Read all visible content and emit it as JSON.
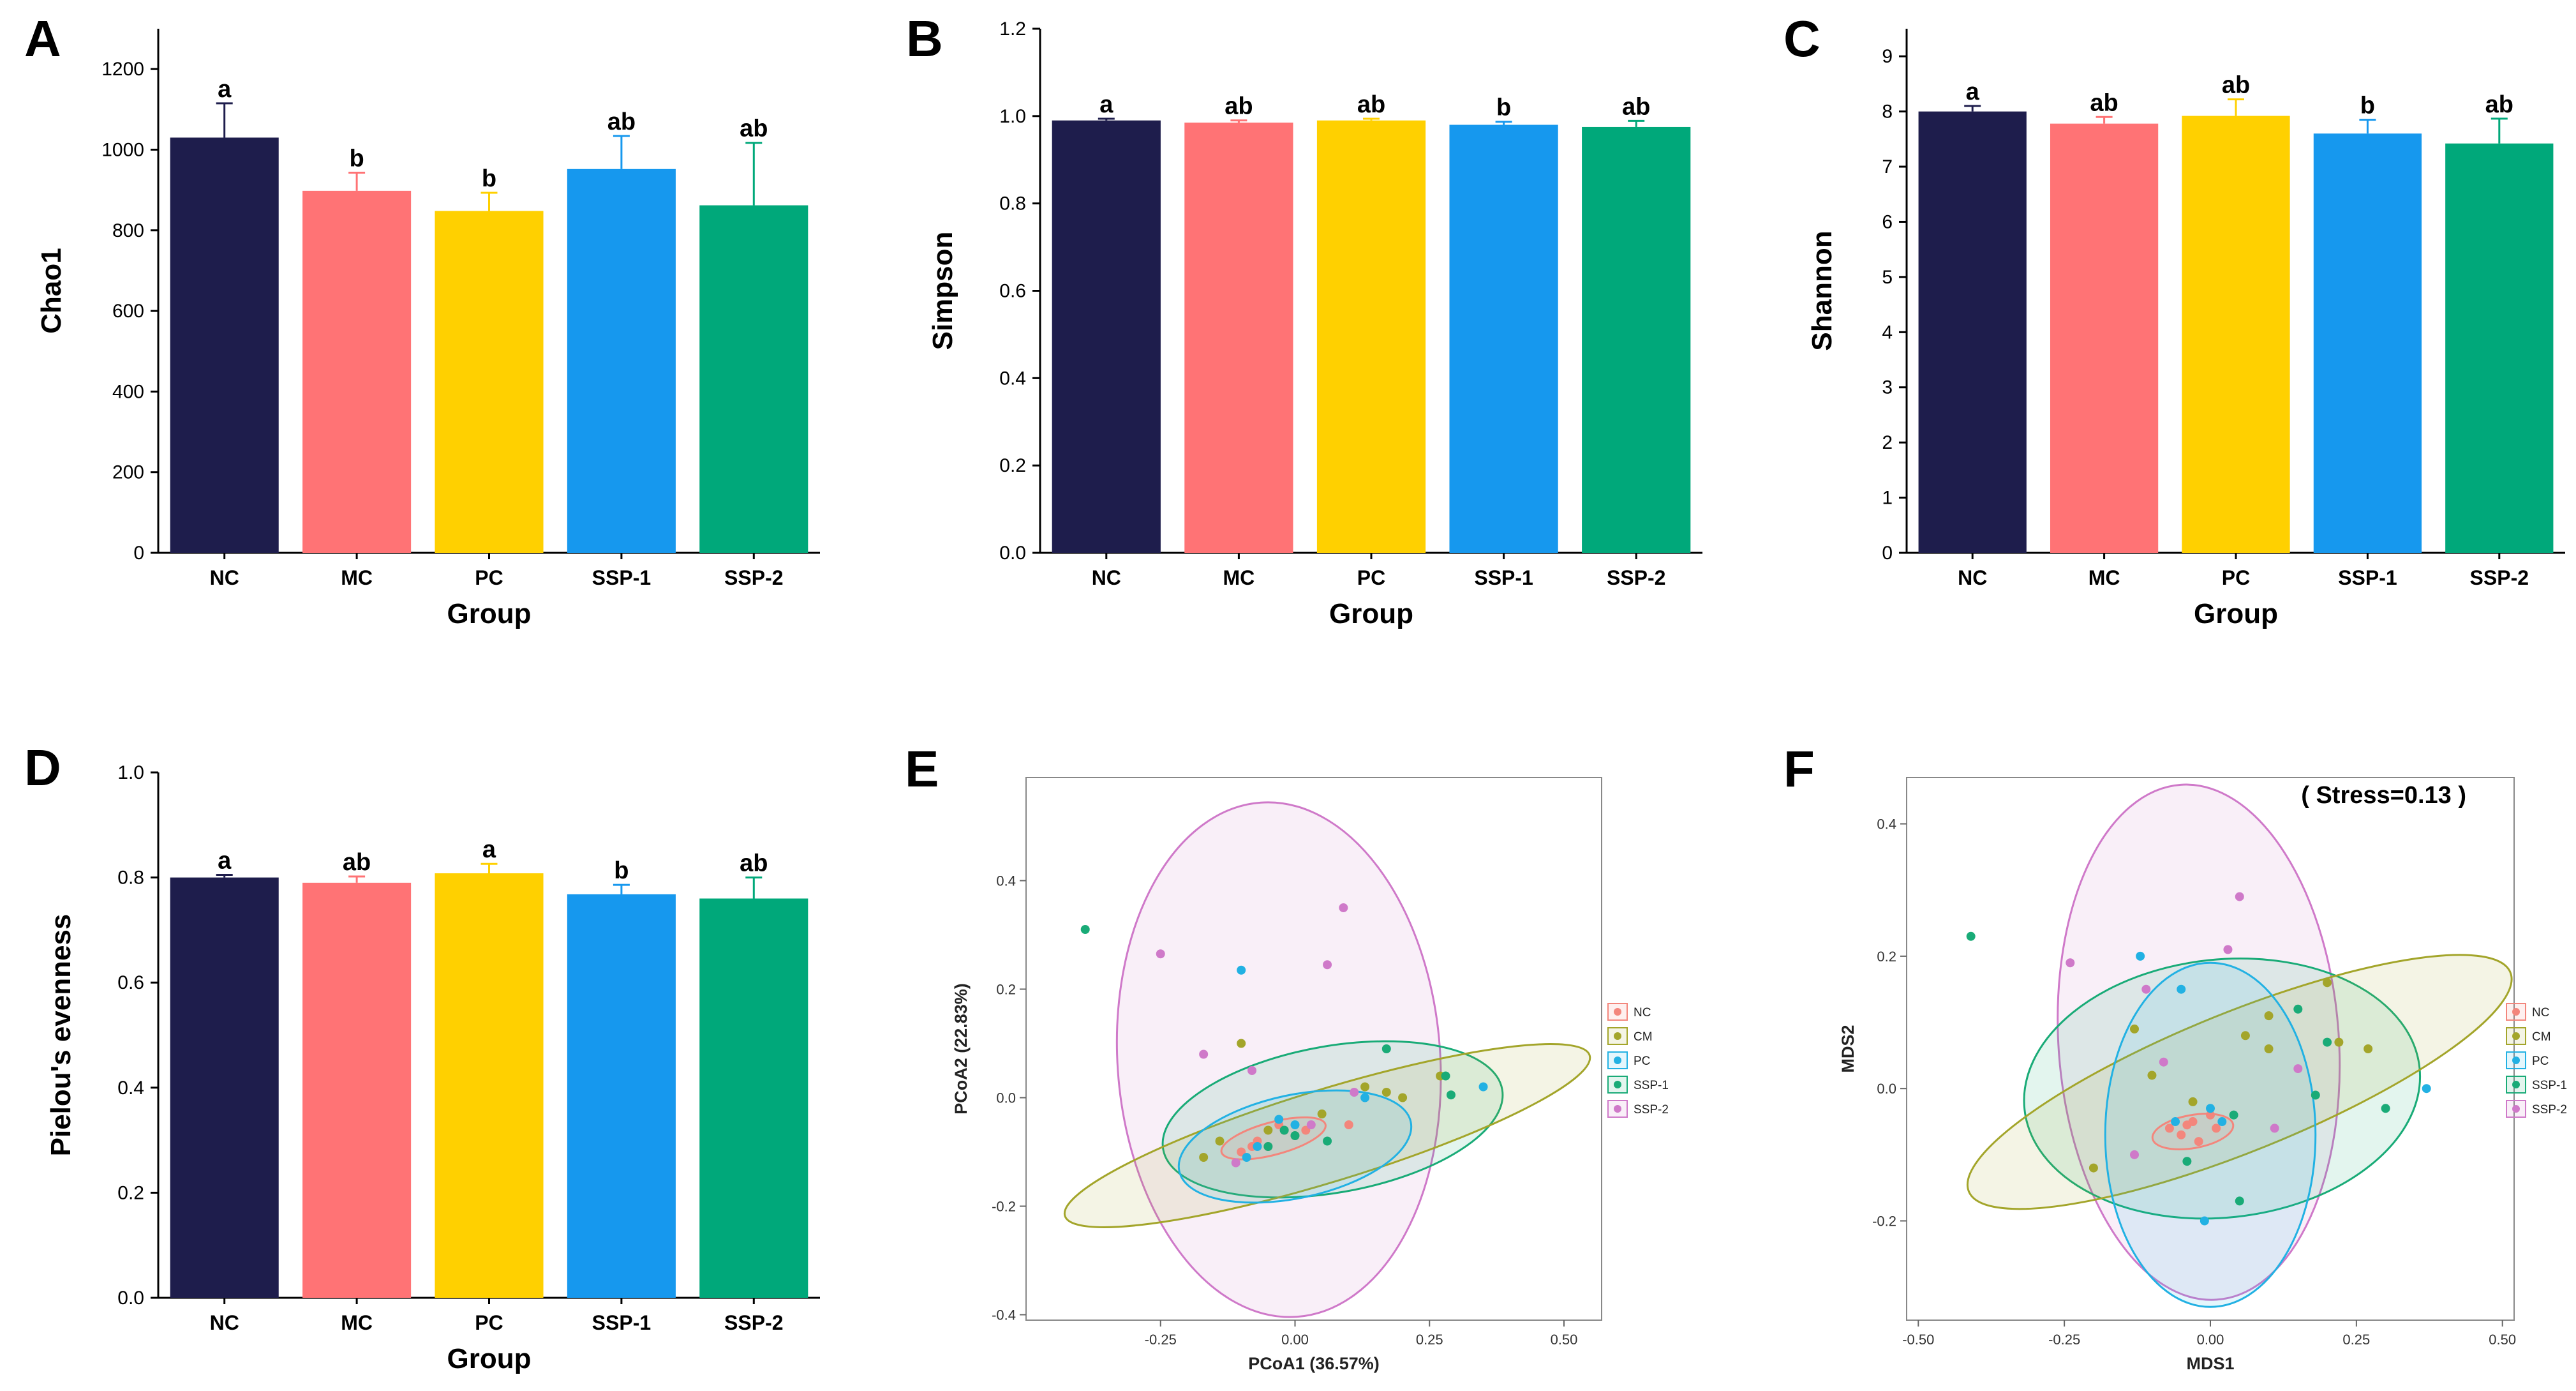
{
  "colors": {
    "NC": "#1e1d4c",
    "MC": "#ff7375",
    "PC": "#ffd000",
    "SSP-1": "#1698ee",
    "SSP-2": "#00a87a"
  },
  "scatter_colors": {
    "NC": "#f3867c",
    "CM": "#a3a52a",
    "PC": "#22b1e3",
    "SSP-1": "#19ab77",
    "SSP-2": "#cf79c9"
  },
  "chart_data": [
    {
      "letter": "A",
      "type": "bar",
      "title": "",
      "xlabel": "Group",
      "ylabel": "Chao1",
      "categories": [
        "NC",
        "MC",
        "PC",
        "SSP-1",
        "SSP-2"
      ],
      "values": [
        1030,
        898,
        848,
        952,
        862
      ],
      "errors": [
        85,
        45,
        45,
        82,
        155
      ],
      "significance": [
        "a",
        "b",
        "b",
        "ab",
        "ab"
      ],
      "ylim": [
        0,
        1300
      ],
      "yticks": [
        0,
        200,
        400,
        600,
        800,
        1000,
        1200
      ],
      "ytick_labels": [
        "0",
        "200",
        "400",
        "600",
        "800",
        "1000",
        "1200"
      ]
    },
    {
      "letter": "B",
      "type": "bar",
      "title": "",
      "xlabel": "Group",
      "ylabel": "Simpson",
      "categories": [
        "NC",
        "MC",
        "PC",
        "SSP-1",
        "SSP-2"
      ],
      "values": [
        0.99,
        0.985,
        0.99,
        0.98,
        0.975
      ],
      "errors": [
        0.004,
        0.005,
        0.004,
        0.007,
        0.014
      ],
      "significance": [
        "a",
        "ab",
        "ab",
        "b",
        "ab"
      ],
      "ylim": [
        0,
        1.2
      ],
      "yticks": [
        0,
        0.2,
        0.4,
        0.6,
        0.8,
        1.0,
        1.2
      ],
      "ytick_labels": [
        "0.0",
        "0.2",
        "0.4",
        "0.6",
        "0.8",
        "1.0",
        "1.2"
      ]
    },
    {
      "letter": "C",
      "type": "bar",
      "title": "",
      "xlabel": "Group",
      "ylabel": "Shannon",
      "categories": [
        "NC",
        "MC",
        "PC",
        "SSP-1",
        "SSP-2"
      ],
      "values": [
        8.0,
        7.78,
        7.92,
        7.6,
        7.42
      ],
      "errors": [
        0.1,
        0.12,
        0.3,
        0.25,
        0.45
      ],
      "significance": [
        "a",
        "ab",
        "ab",
        "b",
        "ab"
      ],
      "ylim": [
        0,
        9.5
      ],
      "yticks": [
        0,
        1,
        2,
        3,
        4,
        5,
        6,
        7,
        8,
        9
      ],
      "ytick_labels": [
        "0",
        "1",
        "2",
        "3",
        "4",
        "5",
        "6",
        "7",
        "8",
        "9"
      ]
    },
    {
      "letter": "D",
      "type": "bar",
      "title": "",
      "xlabel": "Group",
      "ylabel": "Pielou's evenness",
      "categories": [
        "NC",
        "MC",
        "PC",
        "SSP-1",
        "SSP-2"
      ],
      "values": [
        0.8,
        0.79,
        0.808,
        0.768,
        0.76
      ],
      "errors": [
        0.005,
        0.012,
        0.018,
        0.018,
        0.04
      ],
      "significance": [
        "a",
        "ab",
        "a",
        "b",
        "ab"
      ],
      "ylim": [
        0,
        1.0
      ],
      "yticks": [
        0,
        0.2,
        0.4,
        0.6,
        0.8,
        1.0
      ],
      "ytick_labels": [
        "0.0",
        "0.2",
        "0.4",
        "0.6",
        "0.8",
        "1.0"
      ]
    },
    {
      "letter": "E",
      "type": "scatter",
      "title": "",
      "xlabel": "PCoA1 (36.57%)",
      "ylabel": "PCoA2 (22.83%)",
      "xlim": [
        -0.5,
        0.57
      ],
      "ylim": [
        -0.41,
        0.59
      ],
      "xticks": [
        -0.25,
        0,
        0.25,
        0.5
      ],
      "xtick_labels": [
        "-0.25",
        "0.00",
        "0.25",
        "0.50"
      ],
      "yticks": [
        -0.4,
        -0.2,
        0,
        0.2,
        0.4
      ],
      "ytick_labels": [
        "-0.4",
        "-0.2",
        "0.0",
        "0.2",
        "0.4"
      ],
      "legend": [
        "NC",
        "CM",
        "PC",
        "SSP-1",
        "SSP-2"
      ],
      "ellipses": [
        {
          "group": "SSP-2",
          "cx": -0.03,
          "cy": 0.07,
          "rx": 0.3,
          "ry": 0.475,
          "angle": 4
        },
        {
          "group": "SSP-1",
          "cx": 0.07,
          "cy": -0.04,
          "rx": 0.32,
          "ry": 0.135,
          "angle": 10
        },
        {
          "group": "CM",
          "cx": 0.06,
          "cy": -0.07,
          "rx": 0.51,
          "ry": 0.085,
          "angle": 17
        },
        {
          "group": "PC",
          "cx": 0.0,
          "cy": -0.09,
          "rx": 0.22,
          "ry": 0.095,
          "angle": 12
        },
        {
          "group": "NC",
          "cx": -0.04,
          "cy": -0.075,
          "rx": 0.1,
          "ry": 0.03,
          "angle": 15
        }
      ],
      "series": [
        {
          "name": "NC",
          "points": [
            [
              -0.07,
              -0.08
            ],
            [
              -0.05,
              -0.09
            ],
            [
              -0.02,
              -0.06
            ],
            [
              0.0,
              -0.07
            ],
            [
              -0.03,
              -0.05
            ],
            [
              0.02,
              -0.06
            ],
            [
              -0.1,
              -0.1
            ],
            [
              -0.08,
              -0.09
            ],
            [
              0.1,
              -0.05
            ]
          ]
        },
        {
          "name": "CM",
          "points": [
            [
              -0.1,
              0.1
            ],
            [
              0.05,
              -0.03
            ],
            [
              0.13,
              0.02
            ],
            [
              0.17,
              0.01
            ],
            [
              0.2,
              0.0
            ],
            [
              -0.14,
              -0.08
            ],
            [
              -0.17,
              -0.11
            ],
            [
              0.27,
              0.04
            ],
            [
              -0.05,
              -0.06
            ]
          ]
        },
        {
          "name": "PC",
          "points": [
            [
              -0.1,
              0.235
            ],
            [
              0.35,
              0.02
            ],
            [
              -0.03,
              -0.04
            ],
            [
              -0.09,
              -0.11
            ],
            [
              -0.07,
              -0.09
            ],
            [
              0.0,
              -0.05
            ],
            [
              0.13,
              0.0
            ]
          ]
        },
        {
          "name": "SSP-1",
          "points": [
            [
              -0.39,
              0.31
            ],
            [
              0.17,
              0.09
            ],
            [
              0.28,
              0.04
            ],
            [
              0.29,
              0.005
            ],
            [
              -0.05,
              -0.09
            ],
            [
              0.0,
              -0.07
            ],
            [
              0.06,
              -0.08
            ],
            [
              -0.02,
              -0.06
            ]
          ]
        },
        {
          "name": "SSP-2",
          "points": [
            [
              -0.25,
              0.265
            ],
            [
              0.09,
              0.35
            ],
            [
              0.06,
              0.245
            ],
            [
              -0.17,
              0.08
            ],
            [
              -0.08,
              0.05
            ],
            [
              0.11,
              0.01
            ],
            [
              -0.11,
              -0.12
            ],
            [
              0.03,
              -0.05
            ]
          ]
        }
      ]
    },
    {
      "letter": "F",
      "type": "scatter",
      "title": "",
      "xlabel": "MDS1",
      "ylabel": "MDS2",
      "annotation": "( Stress=0.13 )",
      "xlim": [
        -0.52,
        0.52
      ],
      "ylim": [
        -0.35,
        0.47
      ],
      "xticks": [
        -0.5,
        -0.25,
        0,
        0.25,
        0.5
      ],
      "xtick_labels": [
        "-0.50",
        "-0.25",
        "0.00",
        "0.25",
        "0.50"
      ],
      "yticks": [
        -0.2,
        0,
        0.2,
        0.4
      ],
      "ytick_labels": [
        "-0.2",
        "0.0",
        "0.2",
        "0.4"
      ],
      "legend": [
        "NC",
        "CM",
        "PC",
        "SSP-1",
        "SSP-2"
      ],
      "ellipses": [
        {
          "group": "SSP-2",
          "cx": -0.02,
          "cy": 0.07,
          "rx": 0.24,
          "ry": 0.39,
          "angle": 4
        },
        {
          "group": "SSP-1",
          "cx": 0.02,
          "cy": 0.0,
          "rx": 0.34,
          "ry": 0.195,
          "angle": 6
        },
        {
          "group": "CM",
          "cx": 0.05,
          "cy": 0.01,
          "rx": 0.5,
          "ry": 0.105,
          "angle": 22
        },
        {
          "group": "PC",
          "cx": 0.0,
          "cy": -0.07,
          "rx": 0.18,
          "ry": 0.26,
          "angle": 0
        },
        {
          "group": "NC",
          "cx": -0.03,
          "cy": -0.065,
          "rx": 0.07,
          "ry": 0.025,
          "angle": 10
        }
      ],
      "series": [
        {
          "name": "NC",
          "points": [
            [
              -0.05,
              -0.07
            ],
            [
              -0.03,
              -0.05
            ],
            [
              0.0,
              -0.04
            ],
            [
              -0.02,
              -0.08
            ],
            [
              0.01,
              -0.06
            ],
            [
              -0.07,
              -0.06
            ],
            [
              -0.04,
              -0.055
            ]
          ]
        },
        {
          "name": "CM",
          "points": [
            [
              0.2,
              0.16
            ],
            [
              0.27,
              0.06
            ],
            [
              0.1,
              0.11
            ],
            [
              -0.1,
              0.02
            ],
            [
              0.06,
              0.08
            ],
            [
              0.1,
              0.06
            ],
            [
              -0.13,
              0.09
            ],
            [
              -0.2,
              -0.12
            ],
            [
              -0.03,
              -0.02
            ],
            [
              0.22,
              0.07
            ]
          ]
        },
        {
          "name": "PC",
          "points": [
            [
              -0.12,
              0.2
            ],
            [
              0.37,
              0.0
            ],
            [
              -0.05,
              0.15
            ],
            [
              0.0,
              -0.03
            ],
            [
              -0.01,
              -0.2
            ],
            [
              0.02,
              -0.05
            ],
            [
              -0.06,
              -0.05
            ]
          ]
        },
        {
          "name": "SSP-1",
          "points": [
            [
              -0.41,
              0.23
            ],
            [
              0.15,
              0.12
            ],
            [
              0.3,
              -0.03
            ],
            [
              0.2,
              0.07
            ],
            [
              0.18,
              -0.01
            ],
            [
              0.05,
              -0.17
            ],
            [
              -0.04,
              -0.11
            ],
            [
              0.04,
              -0.04
            ]
          ]
        },
        {
          "name": "SSP-2",
          "points": [
            [
              -0.24,
              0.19
            ],
            [
              0.05,
              0.29
            ],
            [
              0.03,
              0.21
            ],
            [
              -0.11,
              0.15
            ],
            [
              0.15,
              0.03
            ],
            [
              -0.08,
              0.04
            ],
            [
              -0.13,
              -0.1
            ],
            [
              0.11,
              -0.06
            ]
          ]
        }
      ]
    }
  ]
}
